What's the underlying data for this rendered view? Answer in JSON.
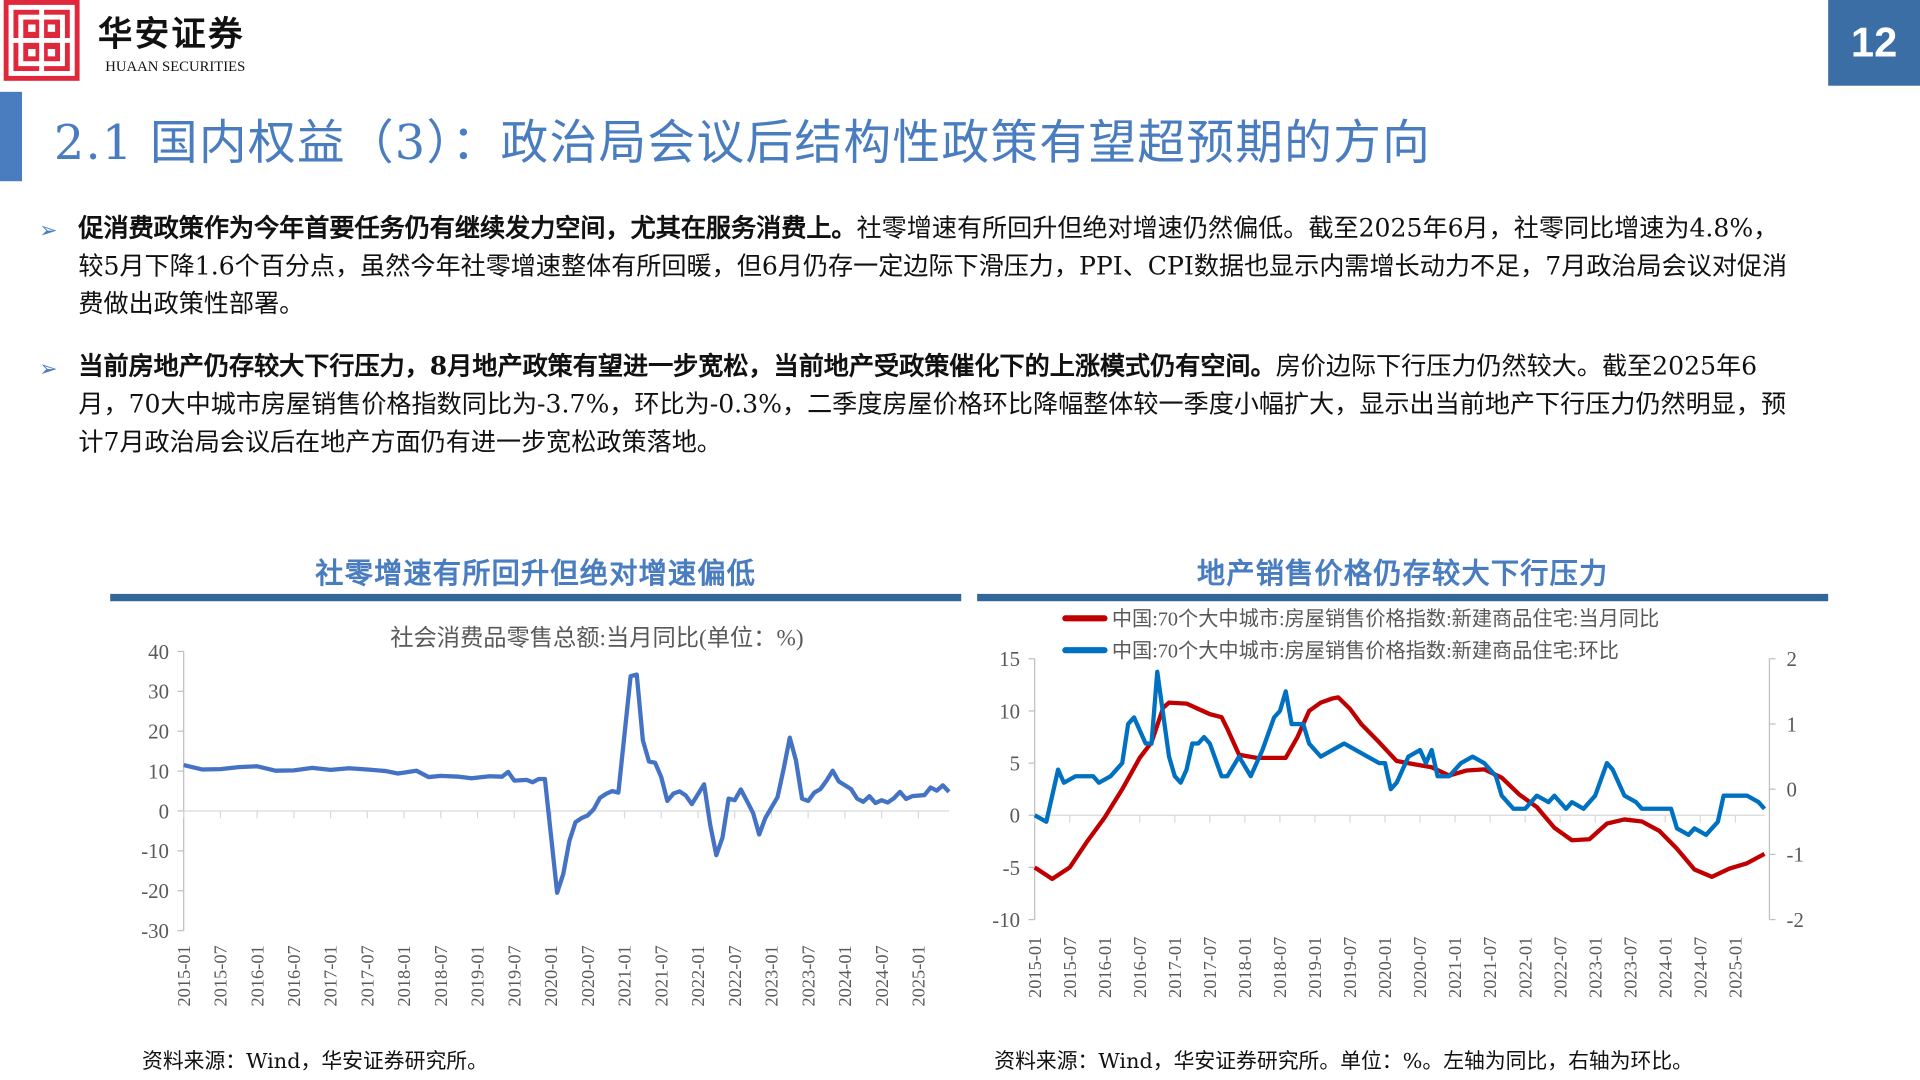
{
  "header": {
    "logo_cn": "华安证券",
    "logo_en": "HUAAN SECURITIES",
    "page_number": "12"
  },
  "title": "2.1 国内权益（3）：政治局会议后结构性政策有望超预期的方向",
  "bullets": [
    {
      "bold": "促消费政策作为今年首要任务仍有继续发力空间，尤其在服务消费上。",
      "text": "社零增速有所回升但绝对增速仍然偏低。截至2025年6月，社零同比增速为4.8%，较5月下降1.6个百分点，虽然今年社零增速整体有所回暖，但6月仍存一定边际下滑压力，PPI、CPI数据也显示内需增长动力不足，7月政治局会议对促消费做出政策性部署。"
    },
    {
      "bold": "当前房地产仍存较大下行压力，8月地产政策有望进一步宽松，当前地产受政策催化下的上涨模式仍有空间。",
      "text": "房价边际下行压力仍然较大。截至2025年6月，70大中城市房屋销售价格指数同比为-3.7%，环比为-0.3%，二季度房屋价格环比降幅整体较一季度小幅扩大，显示出当前地产下行压力仍然明显，预计7月政治局会议后在地产方面仍有进一步宽松政策落地。"
    }
  ],
  "left_panel": {
    "title": "社零增速有所回升但绝对增速偏低",
    "source": "资料来源：Wind，华安证券研究所。"
  },
  "right_panel": {
    "title": "地产销售价格仍存较大下行压力",
    "source": "资料来源：Wind，华安证券研究所。单位：%。左轴为同比，右轴为环比。"
  },
  "chart_data": [
    {
      "type": "line",
      "title": "社会消费品零售总额:当月同比(单位：%)",
      "ylim": [
        -30,
        40
      ],
      "yticks": [
        40,
        30,
        20,
        10,
        0,
        -10,
        -20,
        -30
      ],
      "xlim": [
        "2015-01",
        "2025-06"
      ],
      "xticks": [
        "2015-01",
        "2015-07",
        "2016-01",
        "2016-07",
        "2017-01",
        "2017-07",
        "2018-01",
        "2018-07",
        "2019-01",
        "2019-07",
        "2020-01",
        "2020-07",
        "2021-01",
        "2021-07",
        "2022-01",
        "2022-07",
        "2023-01",
        "2023-07",
        "2024-01",
        "2024-07",
        "2025-01"
      ],
      "color": "#4472c4",
      "series": [
        {
          "name": "社会消费品零售总额:当月同比",
          "points": [
            [
              "2015-01",
              11.5
            ],
            [
              "2015-04",
              10.4
            ],
            [
              "2015-07",
              10.5
            ],
            [
              "2015-10",
              11
            ],
            [
              "2016-01",
              11.2
            ],
            [
              "2016-04",
              10.1
            ],
            [
              "2016-07",
              10.2
            ],
            [
              "2016-10",
              10.8
            ],
            [
              "2017-01",
              10.3
            ],
            [
              "2017-04",
              10.7
            ],
            [
              "2017-07",
              10.4
            ],
            [
              "2017-10",
              10
            ],
            [
              "2017-12",
              9.4
            ],
            [
              "2018-03",
              10.1
            ],
            [
              "2018-05",
              8.5
            ],
            [
              "2018-07",
              8.8
            ],
            [
              "2018-10",
              8.6
            ],
            [
              "2018-12",
              8.2
            ],
            [
              "2019-03",
              8.7
            ],
            [
              "2019-05",
              8.6
            ],
            [
              "2019-06",
              9.8
            ],
            [
              "2019-07",
              7.6
            ],
            [
              "2019-09",
              7.8
            ],
            [
              "2019-10",
              7.2
            ],
            [
              "2019-11",
              8
            ],
            [
              "2019-12",
              8
            ],
            [
              "2020-02",
              -20.5
            ],
            [
              "2020-03",
              -15.8
            ],
            [
              "2020-04",
              -7.5
            ],
            [
              "2020-05",
              -2.8
            ],
            [
              "2020-06",
              -1.8
            ],
            [
              "2020-07",
              -1.1
            ],
            [
              "2020-08",
              0.5
            ],
            [
              "2020-09",
              3.3
            ],
            [
              "2020-10",
              4.3
            ],
            [
              "2020-11",
              5
            ],
            [
              "2020-12",
              4.6
            ],
            [
              "2021-02",
              33.8
            ],
            [
              "2021-03",
              34.2
            ],
            [
              "2021-04",
              17.7
            ],
            [
              "2021-05",
              12.4
            ],
            [
              "2021-06",
              12.1
            ],
            [
              "2021-07",
              8.5
            ],
            [
              "2021-08",
              2.5
            ],
            [
              "2021-09",
              4.4
            ],
            [
              "2021-10",
              4.9
            ],
            [
              "2021-11",
              3.9
            ],
            [
              "2021-12",
              1.7
            ],
            [
              "2022-02",
              6.7
            ],
            [
              "2022-03",
              -3.5
            ],
            [
              "2022-04",
              -11.1
            ],
            [
              "2022-05",
              -6.7
            ],
            [
              "2022-06",
              3.1
            ],
            [
              "2022-07",
              2.7
            ],
            [
              "2022-08",
              5.4
            ],
            [
              "2022-09",
              2.5
            ],
            [
              "2022-10",
              -0.5
            ],
            [
              "2022-11",
              -5.9
            ],
            [
              "2022-12",
              -1.8
            ],
            [
              "2023-02",
              3.5
            ],
            [
              "2023-03",
              10.6
            ],
            [
              "2023-04",
              18.4
            ],
            [
              "2023-05",
              12.7
            ],
            [
              "2023-06",
              3.1
            ],
            [
              "2023-07",
              2.5
            ],
            [
              "2023-08",
              4.6
            ],
            [
              "2023-09",
              5.5
            ],
            [
              "2023-10",
              7.6
            ],
            [
              "2023-11",
              10.1
            ],
            [
              "2023-12",
              7.4
            ],
            [
              "2024-02",
              5.5
            ],
            [
              "2024-03",
              3.1
            ],
            [
              "2024-04",
              2.3
            ],
            [
              "2024-05",
              3.7
            ],
            [
              "2024-06",
              2
            ],
            [
              "2024-07",
              2.7
            ],
            [
              "2024-08",
              2.1
            ],
            [
              "2024-09",
              3.2
            ],
            [
              "2024-10",
              4.8
            ],
            [
              "2024-11",
              3
            ],
            [
              "2024-12",
              3.7
            ],
            [
              "2025-02",
              4
            ],
            [
              "2025-03",
              5.9
            ],
            [
              "2025-04",
              5.1
            ],
            [
              "2025-05",
              6.4
            ],
            [
              "2025-06",
              4.8
            ]
          ]
        }
      ]
    },
    {
      "type": "line",
      "ylim": [
        -10,
        15
      ],
      "yticks": [
        15,
        10,
        5,
        0,
        -5,
        -10
      ],
      "y2lim": [
        -2,
        2
      ],
      "y2ticks": [
        2,
        1,
        0,
        -1,
        -2
      ],
      "xlim": [
        "2015-01",
        "2025-06"
      ],
      "xticks": [
        "2015-01",
        "2015-07",
        "2016-01",
        "2016-07",
        "2017-01",
        "2017-07",
        "2018-01",
        "2018-07",
        "2019-01",
        "2019-07",
        "2020-01",
        "2020-07",
        "2021-01",
        "2021-07",
        "2022-01",
        "2022-07",
        "2023-01",
        "2023-07",
        "2024-01",
        "2024-07",
        "2025-01"
      ],
      "legend": "top",
      "series": [
        {
          "name": "中国:70个大中城市:房屋销售价格指数:新建商品住宅:当月同比",
          "axis": "left",
          "color": "#c00000",
          "points": [
            [
              "2015-01",
              -5
            ],
            [
              "2015-04",
              -6.1
            ],
            [
              "2015-07",
              -5
            ],
            [
              "2015-10",
              -2.5
            ],
            [
              "2016-01",
              -0.2
            ],
            [
              "2016-04",
              2.5
            ],
            [
              "2016-07",
              5.5
            ],
            [
              "2016-09",
              7
            ],
            [
              "2016-11",
              10.3
            ],
            [
              "2016-12",
              10.8
            ],
            [
              "2017-03",
              10.7
            ],
            [
              "2017-05",
              10.2
            ],
            [
              "2017-07",
              9.7
            ],
            [
              "2017-09",
              9.4
            ],
            [
              "2017-10",
              8.3
            ],
            [
              "2017-12",
              5.8
            ],
            [
              "2018-03",
              5.5
            ],
            [
              "2018-06",
              5.5
            ],
            [
              "2018-08",
              5.5
            ],
            [
              "2018-10",
              7.5
            ],
            [
              "2018-12",
              10
            ],
            [
              "2019-02",
              10.8
            ],
            [
              "2019-04",
              11.2
            ],
            [
              "2019-05",
              11.3
            ],
            [
              "2019-07",
              10.2
            ],
            [
              "2019-09",
              8.7
            ],
            [
              "2019-12",
              7
            ],
            [
              "2020-03",
              5.2
            ],
            [
              "2020-06",
              4.9
            ],
            [
              "2020-09",
              4.6
            ],
            [
              "2020-12",
              3.8
            ],
            [
              "2021-03",
              4.3
            ],
            [
              "2021-06",
              4.4
            ],
            [
              "2021-09",
              3.6
            ],
            [
              "2021-12",
              2
            ],
            [
              "2022-03",
              0.8
            ],
            [
              "2022-06",
              -1.2
            ],
            [
              "2022-09",
              -2.4
            ],
            [
              "2022-12",
              -2.3
            ],
            [
              "2023-03",
              -0.8
            ],
            [
              "2023-06",
              -0.4
            ],
            [
              "2023-09",
              -0.6
            ],
            [
              "2023-12",
              -1.5
            ],
            [
              "2024-03",
              -3.2
            ],
            [
              "2024-06",
              -5.2
            ],
            [
              "2024-09",
              -5.9
            ],
            [
              "2024-12",
              -5.1
            ],
            [
              "2025-03",
              -4.6
            ],
            [
              "2025-06",
              -3.7
            ]
          ]
        },
        {
          "name": "中国:70个大中城市:房屋销售价格指数:新建商品住宅:环比",
          "axis": "right",
          "color": "#0070c0",
          "points": [
            [
              "2015-01",
              -0.4
            ],
            [
              "2015-03",
              -0.5
            ],
            [
              "2015-05",
              0.3
            ],
            [
              "2015-06",
              0.1
            ],
            [
              "2015-08",
              0.2
            ],
            [
              "2015-11",
              0.2
            ],
            [
              "2015-12",
              0.1
            ],
            [
              "2016-02",
              0.2
            ],
            [
              "2016-04",
              0.4
            ],
            [
              "2016-05",
              1.0
            ],
            [
              "2016-06",
              1.1
            ],
            [
              "2016-08",
              0.7
            ],
            [
              "2016-09",
              0.7
            ],
            [
              "2016-10",
              1.8
            ],
            [
              "2016-12",
              0.5
            ],
            [
              "2017-01",
              0.2
            ],
            [
              "2017-02",
              0.1
            ],
            [
              "2017-03",
              0.3
            ],
            [
              "2017-04",
              0.7
            ],
            [
              "2017-05",
              0.7
            ],
            [
              "2017-06",
              0.8
            ],
            [
              "2017-07",
              0.7
            ],
            [
              "2017-09",
              0.2
            ],
            [
              "2017-10",
              0.2
            ],
            [
              "2017-12",
              0.5
            ],
            [
              "2018-02",
              0.2
            ],
            [
              "2018-04",
              0.6
            ],
            [
              "2018-06",
              1.1
            ],
            [
              "2018-07",
              1.2
            ],
            [
              "2018-08",
              1.5
            ],
            [
              "2018-09",
              1.0
            ],
            [
              "2018-11",
              1.0
            ],
            [
              "2018-12",
              0.7
            ],
            [
              "2019-02",
              0.5
            ],
            [
              "2019-04",
              0.6
            ],
            [
              "2019-06",
              0.7
            ],
            [
              "2019-08",
              0.6
            ],
            [
              "2019-10",
              0.5
            ],
            [
              "2019-12",
              0.4
            ],
            [
              "2020-01",
              0.4
            ],
            [
              "2020-02",
              0.0
            ],
            [
              "2020-03",
              0.1
            ],
            [
              "2020-05",
              0.5
            ],
            [
              "2020-07",
              0.6
            ],
            [
              "2020-08",
              0.4
            ],
            [
              "2020-09",
              0.6
            ],
            [
              "2020-10",
              0.2
            ],
            [
              "2020-12",
              0.2
            ],
            [
              "2021-02",
              0.4
            ],
            [
              "2021-04",
              0.5
            ],
            [
              "2021-06",
              0.4
            ],
            [
              "2021-08",
              0.2
            ],
            [
              "2021-09",
              -0.1
            ],
            [
              "2021-11",
              -0.3
            ],
            [
              "2022-01",
              -0.3
            ],
            [
              "2022-03",
              -0.1
            ],
            [
              "2022-05",
              -0.2
            ],
            [
              "2022-06",
              -0.1
            ],
            [
              "2022-08",
              -0.3
            ],
            [
              "2022-09",
              -0.2
            ],
            [
              "2022-11",
              -0.3
            ],
            [
              "2023-01",
              -0.1
            ],
            [
              "2023-03",
              0.4
            ],
            [
              "2023-04",
              0.3
            ],
            [
              "2023-06",
              -0.1
            ],
            [
              "2023-08",
              -0.2
            ],
            [
              "2023-09",
              -0.3
            ],
            [
              "2023-12",
              -0.3
            ],
            [
              "2024-02",
              -0.3
            ],
            [
              "2024-03",
              -0.6
            ],
            [
              "2024-05",
              -0.7
            ],
            [
              "2024-06",
              -0.6
            ],
            [
              "2024-08",
              -0.7
            ],
            [
              "2024-10",
              -0.5
            ],
            [
              "2024-11",
              -0.1
            ],
            [
              "2024-12",
              -0.1
            ],
            [
              "2025-03",
              -0.1
            ],
            [
              "2025-05",
              -0.2
            ],
            [
              "2025-06",
              -0.3
            ]
          ]
        }
      ]
    }
  ]
}
